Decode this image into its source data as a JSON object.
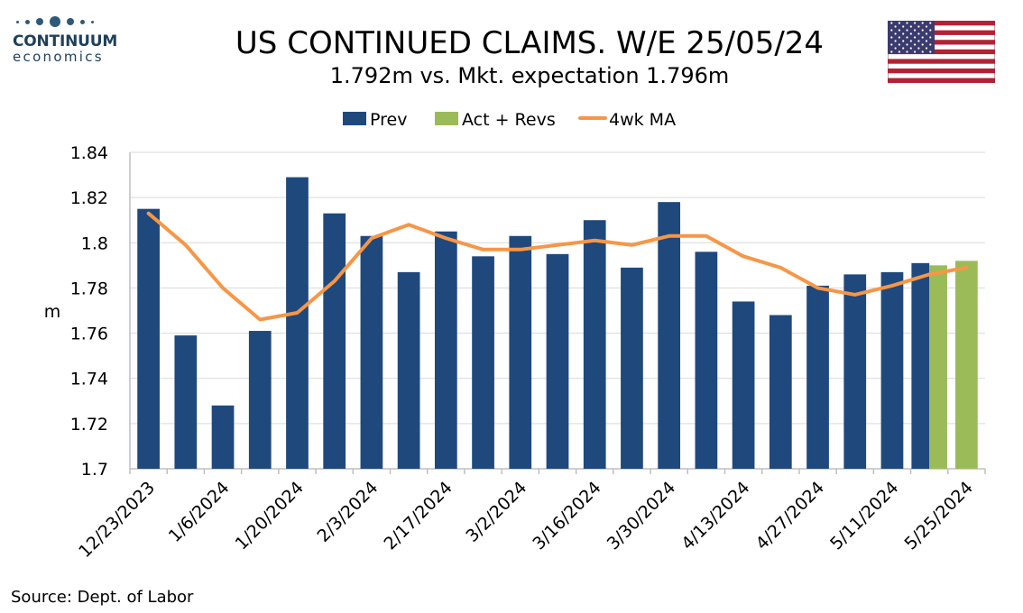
{
  "logo": {
    "name": "CONTINUUM",
    "sub": "economics"
  },
  "title": "US CONTINUED CLAIMS. W/E 25/05/24",
  "subtitle": "1.792m vs. Mkt. expectation 1.796m",
  "flag": {
    "name": "us-flag-icon"
  },
  "source": "Source: Dept. of Labor",
  "colors": {
    "prev": "#1f497d",
    "act": "#9bbb59",
    "ma": "#f79646",
    "axis": "#bfbfbf",
    "grid": "#d9d9d9"
  },
  "chart_data": {
    "type": "bar",
    "ylabel": "m",
    "ylim": [
      1.7,
      1.84
    ],
    "yticks": [
      "1.7",
      "1.72",
      "1.74",
      "1.76",
      "1.78",
      "1.8",
      "1.82",
      "1.84"
    ],
    "grid": true,
    "legend_position": "top-center",
    "categories": [
      "12/23/2023",
      "12/30/2023",
      "1/6/2024",
      "1/13/2024",
      "1/20/2024",
      "1/27/2024",
      "2/3/2024",
      "2/10/2024",
      "2/17/2024",
      "2/24/2024",
      "3/2/2024",
      "3/9/2024",
      "3/16/2024",
      "3/23/2024",
      "3/30/2024",
      "4/6/2024",
      "4/13/2024",
      "4/20/2024",
      "4/27/2024",
      "5/4/2024",
      "5/11/2024",
      "5/18/2024",
      "5/25/2024"
    ],
    "tick_labels": [
      "12/23/2023",
      "1/6/2024",
      "1/20/2024",
      "2/3/2024",
      "2/17/2024",
      "3/2/2024",
      "3/16/2024",
      "3/30/2024",
      "4/13/2024",
      "4/27/2024",
      "5/11/2024",
      "5/25/2024"
    ],
    "series": [
      {
        "name": "Prev",
        "kind": "bar",
        "values": [
          1.815,
          1.759,
          1.728,
          1.761,
          1.829,
          1.813,
          1.803,
          1.787,
          1.805,
          1.794,
          1.803,
          1.795,
          1.81,
          1.789,
          1.818,
          1.796,
          1.774,
          1.768,
          1.781,
          1.786,
          1.787,
          1.791,
          null
        ]
      },
      {
        "name": "Act + Revs",
        "kind": "bar",
        "values": [
          null,
          null,
          null,
          null,
          null,
          null,
          null,
          null,
          null,
          null,
          null,
          null,
          null,
          null,
          null,
          null,
          null,
          null,
          null,
          null,
          null,
          1.79,
          1.792
        ]
      },
      {
        "name": "4wk MA",
        "kind": "line",
        "values": [
          1.813,
          1.799,
          1.78,
          1.766,
          1.769,
          1.783,
          1.802,
          1.808,
          1.802,
          1.797,
          1.797,
          1.799,
          1.801,
          1.799,
          1.803,
          1.803,
          1.794,
          1.789,
          1.78,
          1.777,
          1.781,
          1.786,
          1.789
        ]
      }
    ]
  }
}
